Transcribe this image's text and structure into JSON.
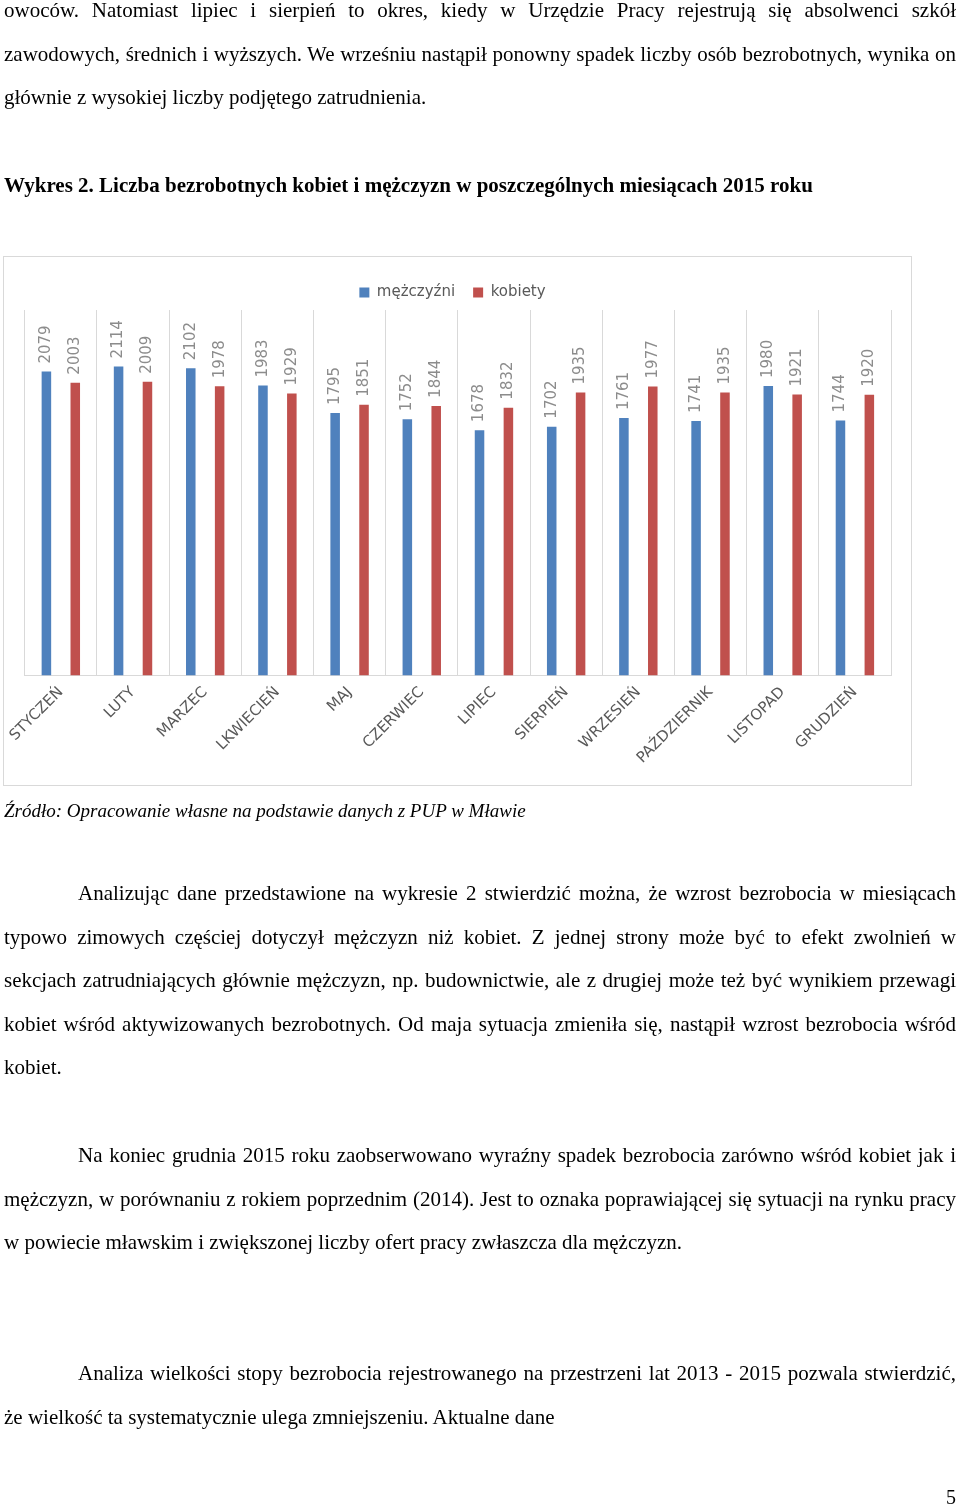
{
  "chart_data": {
    "type": "bar",
    "title": "Wykres 2. Liczba bezrobotnych kobiet i mężczyzn w poszczególnych miesiącach 2015 roku",
    "categories": [
      "STYCZEŃ",
      "LUTY",
      "MARZEC",
      "LKWIECIEŃ",
      "MAJ",
      "CZERWIEC",
      "LIPIEC",
      "SIERPIEŃ",
      "WRZESIEŃ",
      "PAŹDZIERNIK",
      "LISTOPAD",
      "GRUDZIEŃ"
    ],
    "series": [
      {
        "name": "mężczyźni",
        "color": "#4f81bd",
        "values": [
          2079,
          2114,
          2102,
          1983,
          1795,
          1752,
          1678,
          1702,
          1761,
          1741,
          1980,
          1744
        ]
      },
      {
        "name": "kobiety",
        "color": "#c0504d",
        "values": [
          2003,
          2009,
          1978,
          1929,
          1851,
          1844,
          1832,
          1935,
          1977,
          1935,
          1921,
          1920
        ]
      }
    ],
    "data_labels": true,
    "grid": "x",
    "legend": "top",
    "annotations": [
      "owoców. Natomiast lipiec i sierpień to okres, kiedy w Urzędzie Pracy rejestrują się absolwenci szkół zawodowych, średnich i wyższych. We wrześniu nastąpił ponowny spadek liczby osób bezrobotnych, wynika on głównie z wysokiej liczby podjętego zatrudnienia.",
      "Źródło: Opracowanie własne na podstawie danych z PUP w Mławie",
      "Analizując dane przedstawione na wykresie 2  stwierdzić można, że wzrost bezrobocia w miesiącach typowo zimowych częściej dotyczył mężczyzn niż kobiet. Z jednej strony może być to efekt zwolnień w sekcjach zatrudniających głównie mężczyzn, np. budownictwie, ale z drugiej może też być wynikiem przewagi kobiet wśród aktywizowanych bezrobotnych. Od maja sytuacja zmieniła się, nastąpił wzrost bezrobocia wśród kobiet.",
      "Na koniec grudnia 2015 roku zaobserwowano wyraźny spadek bezrobocia zarówno wśród kobiet jak i mężczyzn, w porównaniu z rokiem poprzednim (2014). Jest to oznaka poprawiającej się sytuacji na rynku pracy w powiecie mławskim i zwiększonej liczby ofert pracy zwłaszcza dla mężczyzn.",
      "Analiza wielkości stopy bezrobocia rejestrowanego na przestrzeni lat 2013 - 2015 pozwala stwierdzić, że wielkość ta systematycznie ulega zmniejszeniu. Aktualne dane",
      "5"
    ]
  }
}
